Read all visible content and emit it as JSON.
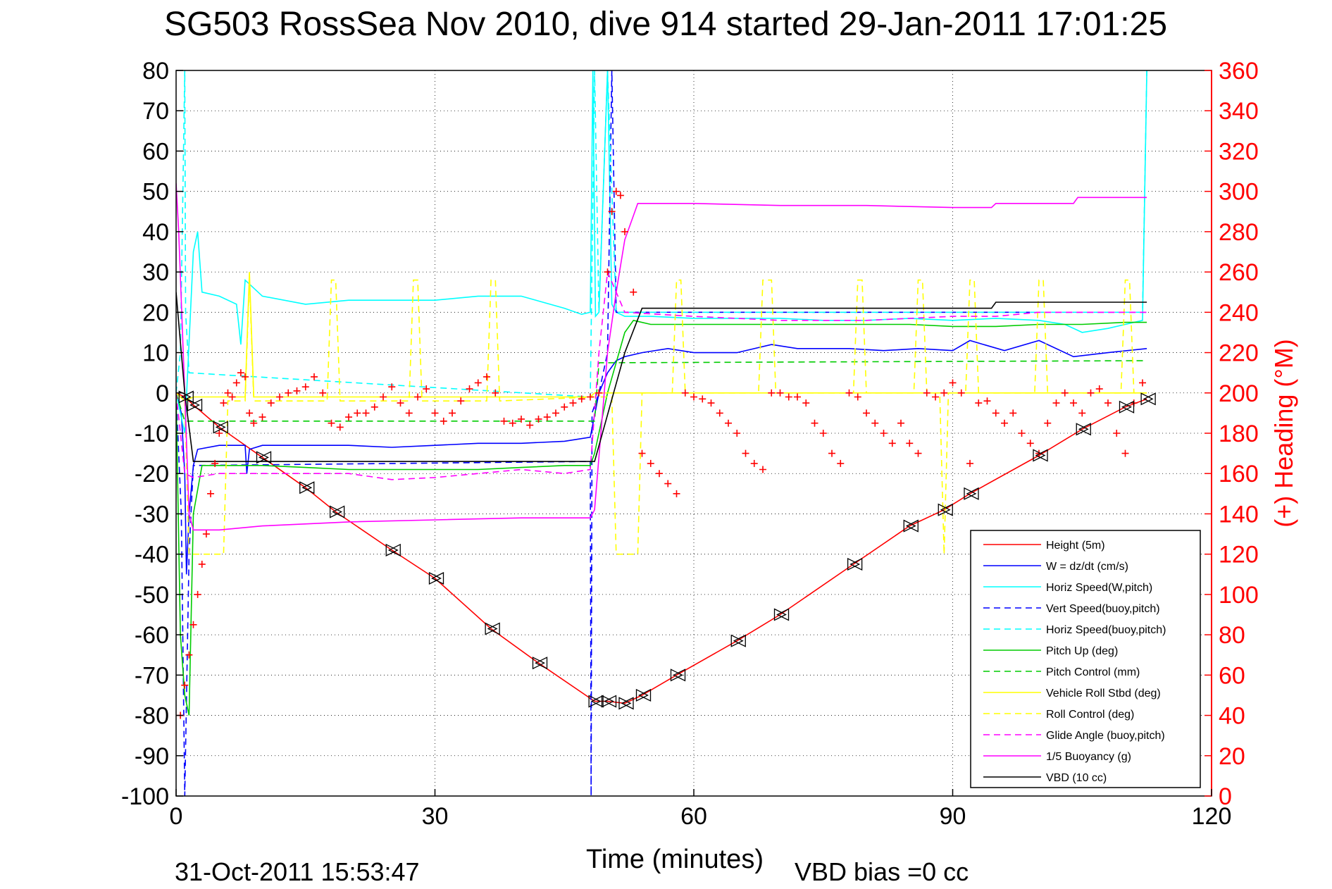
{
  "chart_data": {
    "type": "line",
    "title": "SG503 RossSea Nov 2010, dive 914 started 29-Jan-2011 17:01:25",
    "xlabel": "Time (minutes)",
    "ylabel": "",
    "y2label": "(+) Heading (°M)",
    "footer_timestamp": "31-Oct-2011 15:53:47",
    "footer_note": "VBD bias =0 cc",
    "xlim": [
      0,
      120
    ],
    "ylim": [
      -100,
      80
    ],
    "y2lim": [
      0,
      360
    ],
    "grid": true,
    "xticks": [
      "0",
      "30",
      "60",
      "90",
      "120"
    ],
    "yticks": [
      "80",
      "70",
      "60",
      "50",
      "40",
      "30",
      "20",
      "10",
      "0",
      "-10",
      "-20",
      "-30",
      "-40",
      "-50",
      "-60",
      "-70",
      "-80",
      "-90",
      "-100"
    ],
    "y2ticks": [
      "360",
      "340",
      "320",
      "300",
      "280",
      "260",
      "240",
      "220",
      "200",
      "180",
      "160",
      "140",
      "120",
      "100",
      "80",
      "60",
      "40",
      "20",
      "0"
    ],
    "legend_position": "bottom-right",
    "series": [
      {
        "name": "Height (5m)",
        "color": "#ff0000",
        "style": "solid",
        "x": [
          0,
          1,
          2,
          5,
          10,
          15,
          18.5,
          25,
          30,
          36.5,
          42,
          48.5,
          50,
          52,
          54,
          58,
          65,
          70,
          78.5,
          85,
          89,
          92,
          100,
          105,
          110,
          112.5
        ],
        "y": [
          0,
          -1,
          -3,
          -8.5,
          -16,
          -23.5,
          -29.5,
          -39,
          -46,
          -58.5,
          -67,
          -76.5,
          -76.5,
          -77,
          -75,
          -70,
          -61.5,
          -55,
          -42.5,
          -33,
          -29,
          -25,
          -15.5,
          -9,
          -3.5,
          -1.5
        ]
      },
      {
        "name": "W = dz/dt (cm/s)",
        "color": "#0000ff",
        "style": "solid",
        "x": [
          0,
          0.6,
          1,
          1.2,
          1.5,
          2,
          2.5,
          5,
          8,
          8.2,
          8.5,
          10,
          15,
          20,
          25,
          30,
          35,
          40,
          45,
          48,
          49,
          50,
          51,
          52,
          54,
          57,
          60,
          65,
          69,
          72,
          78,
          82,
          86,
          90,
          92,
          96,
          100,
          104,
          108,
          112.5
        ],
        "y": [
          0,
          -5,
          -20,
          -45,
          -30,
          -18,
          -14,
          -13,
          -13,
          -20,
          -14,
          -13,
          -13,
          -13,
          -13.5,
          -13,
          -12.5,
          -12.5,
          -12,
          -11,
          0,
          5,
          8,
          9,
          10,
          11,
          10,
          10,
          12,
          11,
          11,
          10.5,
          11,
          10.5,
          13,
          10.5,
          13,
          9,
          10,
          11
        ]
      },
      {
        "name": "Horiz Speed(W,pitch)",
        "color": "#00ffff",
        "style": "solid",
        "x": [
          0,
          1,
          2,
          2.5,
          3,
          5,
          7,
          7.5,
          8,
          10,
          15,
          20,
          25,
          30,
          35,
          40,
          45,
          47,
          48,
          48.3,
          48.6,
          49,
          50,
          50.5,
          51,
          52,
          55,
          60,
          65,
          70,
          75,
          80,
          85,
          90,
          95,
          100,
          103,
          105,
          108,
          110,
          112,
          112.5
        ],
        "y": [
          0,
          -10,
          35,
          40,
          25,
          24,
          22,
          12,
          28,
          24,
          22,
          23,
          23,
          23,
          24,
          24,
          21,
          19.5,
          20,
          80,
          19,
          20,
          80,
          22,
          20,
          19,
          19,
          18.5,
          18.5,
          18.5,
          18,
          18,
          18.5,
          18,
          18.5,
          18,
          17,
          15,
          16,
          17,
          18,
          80
        ]
      },
      {
        "name": "Vert Speed(buoy,pitch)",
        "color": "#0000ff",
        "style": "dashed",
        "x": [
          0,
          0.6,
          1,
          1.5,
          2,
          48,
          48.1,
          48.2,
          49,
          50,
          50.5,
          51,
          52,
          112.5
        ],
        "y": [
          0,
          -30,
          -100,
          -40,
          -18,
          -17,
          -100,
          -5,
          0,
          10,
          80,
          20,
          20,
          20
        ]
      },
      {
        "name": "Horiz Speed(buoy,pitch)",
        "color": "#00ffff",
        "style": "dashed",
        "x": [
          0,
          0.5,
          1,
          1.1,
          1.5,
          48,
          48.5,
          49,
          50,
          51,
          52,
          112,
          112.5
        ],
        "y": [
          0,
          10,
          80,
          20,
          5,
          -1,
          80,
          20,
          80,
          20,
          20,
          20,
          80
        ]
      },
      {
        "name": "Pitch Up (deg)",
        "color": "#00cc00",
        "style": "solid",
        "x": [
          0,
          0.5,
          1,
          1.5,
          2,
          3,
          5,
          10,
          15,
          20,
          25,
          30,
          35,
          40,
          45,
          48,
          48.5,
          50,
          52,
          53,
          55,
          60,
          65,
          70,
          75,
          80,
          85,
          90,
          95,
          100,
          105,
          110,
          112.5
        ],
        "y": [
          0,
          -60,
          -75,
          -80,
          -30,
          -18,
          -18,
          -18,
          -18.5,
          -19,
          -19,
          -19,
          -19,
          -18.5,
          -18,
          -18,
          -15,
          0,
          15,
          18,
          17,
          17,
          17,
          17,
          17,
          17,
          17,
          16.5,
          16.5,
          17,
          17,
          17.5,
          17.5
        ]
      },
      {
        "name": "Pitch Control (mm)",
        "color": "#00cc00",
        "style": "dashed",
        "x": [
          0,
          1,
          1.5,
          48.5,
          49,
          51,
          112.5
        ],
        "y": [
          0,
          -7,
          -7,
          -7,
          7.5,
          7.5,
          8
        ]
      },
      {
        "name": "Vehicle Roll Stbd (deg)",
        "color": "#ffff00",
        "style": "solid",
        "x": [
          0,
          1,
          2,
          5,
          8,
          8.5,
          9,
          10,
          20,
          30,
          40,
          45,
          48,
          48.5,
          50,
          52,
          112.5
        ],
        "y": [
          0,
          -2,
          -1,
          -1,
          -1,
          30,
          -1,
          -1,
          -1,
          -1,
          -1,
          -1,
          -1,
          0,
          0,
          0,
          0
        ]
      },
      {
        "name": "Roll Control (deg)",
        "color": "#ffff00",
        "style": "dashed",
        "x": [
          0,
          1,
          1.5,
          2,
          5.5,
          6,
          6.5,
          8,
          8.5,
          9,
          17.5,
          18,
          18.5,
          19,
          27,
          27.5,
          28,
          28.5,
          36,
          36.5,
          37,
          37.5,
          48.5,
          50.5,
          51,
          53.5,
          54,
          57.5,
          58,
          58.5,
          59,
          67.5,
          68,
          69,
          69.5,
          78.5,
          79,
          79.5,
          80,
          85.5,
          86,
          86.5,
          87,
          88.5,
          89,
          89.5,
          91.5,
          92,
          92.5,
          93,
          99.5,
          100,
          100.5,
          101,
          109.5,
          110,
          110.5,
          111,
          112.5
        ],
        "y": [
          0,
          -2,
          -40,
          -40,
          -40,
          -2,
          -2,
          -2,
          28,
          -2,
          -2,
          28,
          28,
          -2,
          -2,
          28,
          28,
          -2,
          -2,
          28,
          28,
          -2,
          -1,
          -1,
          -40,
          -40,
          0,
          0,
          28,
          28,
          0,
          0,
          28,
          28,
          0,
          0,
          28,
          28,
          0,
          0,
          28,
          28,
          0,
          0,
          -40,
          0,
          0,
          28,
          28,
          0,
          0,
          28,
          28,
          0,
          0,
          28,
          28,
          0,
          0
        ]
      },
      {
        "name": "Glide Angle (buoy,pitch)",
        "color": "#ff00ff",
        "style": "dashed",
        "x": [
          0,
          1,
          2,
          5,
          10,
          20,
          25,
          30,
          40,
          45,
          48,
          49,
          50,
          51,
          52,
          60,
          70,
          80,
          90,
          95,
          100,
          110,
          112.5
        ],
        "y": [
          0,
          -20,
          -21,
          -20,
          -20,
          -20,
          -21.5,
          -21,
          -19,
          -20,
          -19,
          10,
          30,
          25,
          20,
          19,
          18,
          18,
          19,
          19,
          20,
          20,
          20
        ]
      },
      {
        "name": "1/5 Buoyancy (g)",
        "color": "#ff00ff",
        "style": "solid",
        "x": [
          0,
          0.3,
          1,
          1.5,
          2,
          5,
          10,
          20,
          30,
          40,
          48,
          48.5,
          50,
          51,
          52,
          53,
          53.5,
          55,
          60,
          70,
          80,
          90,
          94.5,
          95,
          100,
          104,
          104.5,
          110,
          112.5
        ],
        "y": [
          52,
          40,
          0,
          -30,
          -34,
          -34,
          -33,
          -32,
          -31.5,
          -31,
          -31,
          -29,
          10,
          25,
          38,
          44,
          47,
          47,
          47,
          46.5,
          46.5,
          46,
          46,
          47,
          47,
          47,
          48.5,
          48.5,
          48.5
        ]
      },
      {
        "name": "VBD (10 cc)",
        "color": "#000000",
        "style": "solid",
        "x": [
          0,
          1,
          2,
          3,
          10,
          20,
          30,
          40,
          48.5,
          52,
          54,
          60,
          70,
          80,
          90,
          94.5,
          95,
          110,
          112.5
        ],
        "y": [
          25,
          0,
          -17,
          -17,
          -17,
          -17,
          -17,
          -17,
          -17,
          10,
          21,
          21,
          21,
          21,
          21,
          21,
          22.5,
          22.5,
          22.5
        ]
      },
      {
        "name": "Heading",
        "color": "#ff0000",
        "style": "markers",
        "axis": "right",
        "x": [
          0.5,
          1,
          1.5,
          2,
          2.5,
          3,
          3.5,
          4,
          4.5,
          5,
          5.5,
          6,
          6.5,
          7,
          7.5,
          8,
          8.5,
          9,
          10,
          11,
          12,
          13,
          14,
          15,
          16,
          17,
          18,
          19,
          20,
          21,
          22,
          23,
          24,
          25,
          26,
          27,
          28,
          29,
          30,
          31,
          32,
          33,
          34,
          35,
          36,
          37,
          38,
          39,
          40,
          41,
          42,
          43,
          44,
          45,
          46,
          47,
          48,
          49,
          50,
          50.5,
          51,
          51.5,
          52,
          53,
          54,
          55,
          56,
          57,
          58,
          59,
          60,
          61,
          62,
          63,
          64,
          65,
          66,
          67,
          68,
          69,
          70,
          71,
          72,
          73,
          74,
          75,
          76,
          77,
          78,
          79,
          80,
          81,
          82,
          83,
          84,
          85,
          86,
          87,
          88,
          89,
          90,
          91,
          92,
          93,
          94,
          95,
          96,
          97,
          98,
          99,
          100,
          101,
          102,
          103,
          104,
          105,
          106,
          107,
          108,
          109,
          110,
          111,
          112
        ],
        "y": [
          40,
          55,
          70,
          85,
          100,
          115,
          130,
          150,
          165,
          180,
          195,
          200,
          198,
          205,
          210,
          208,
          190,
          185,
          188,
          195,
          198,
          200,
          201,
          203,
          208,
          200,
          185,
          183,
          188,
          190,
          190,
          193,
          198,
          203,
          195,
          190,
          198,
          202,
          190,
          186,
          190,
          196,
          202,
          205,
          208,
          200,
          186,
          185,
          187,
          184,
          187,
          188,
          190,
          193,
          195,
          197,
          198,
          200,
          260,
          290,
          300,
          298,
          280,
          250,
          170,
          165,
          160,
          155,
          150,
          200,
          198,
          197,
          195,
          190,
          185,
          180,
          170,
          165,
          162,
          200,
          200,
          198,
          198,
          195,
          185,
          180,
          170,
          165,
          200,
          198,
          190,
          185,
          180,
          175,
          185,
          175,
          170,
          200,
          198,
          200,
          205,
          200,
          165,
          195,
          196,
          190,
          185,
          190,
          180,
          175,
          170,
          185,
          195,
          200,
          195,
          190,
          200,
          202,
          195,
          180,
          170,
          195,
          205
        ]
      }
    ]
  }
}
